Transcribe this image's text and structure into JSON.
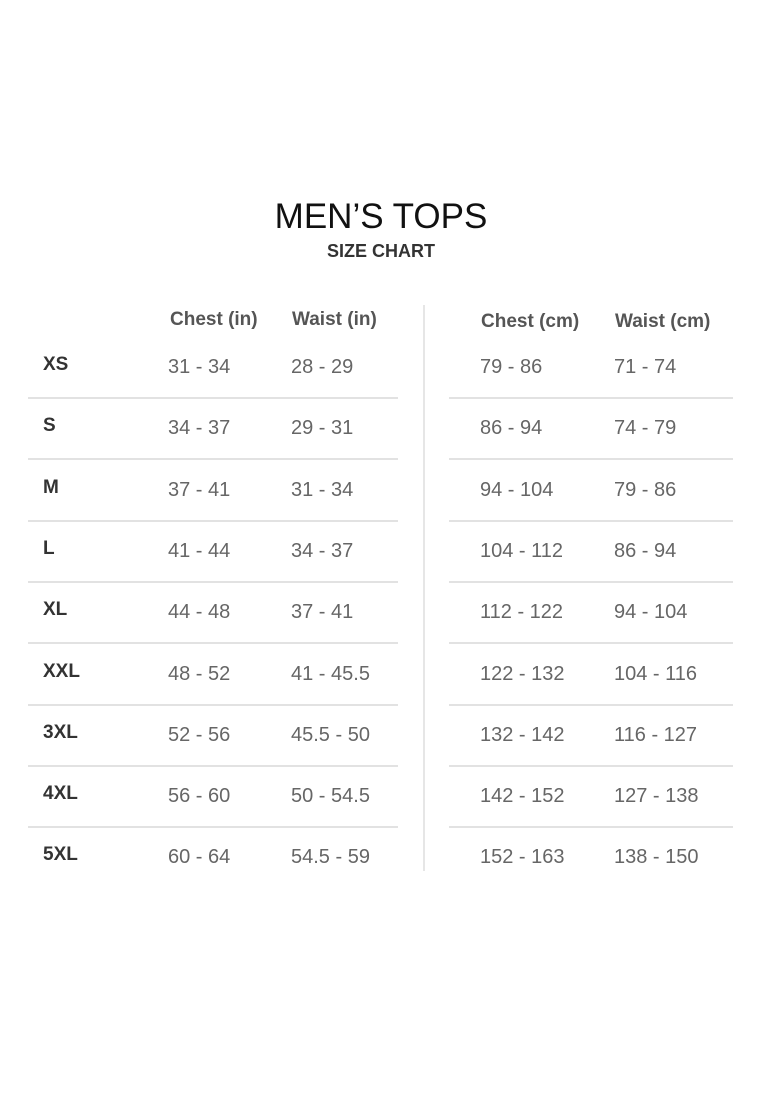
{
  "title": "MEN’S TOPS",
  "subtitle": "SIZE CHART",
  "inches_table": {
    "headers": [
      "Chest (in)",
      "Waist (in)"
    ],
    "rows": [
      {
        "size": "XS",
        "chest": "31 - 34",
        "waist": "28 - 29"
      },
      {
        "size": "S",
        "chest": "34 - 37",
        "waist": "29 - 31"
      },
      {
        "size": "M",
        "chest": "37 - 41",
        "waist": "31 - 34"
      },
      {
        "size": "L",
        "chest": "41 - 44",
        "waist": "34 - 37"
      },
      {
        "size": "XL",
        "chest": "44 - 48",
        "waist": "37 - 41"
      },
      {
        "size": "XXL",
        "chest": "48 - 52",
        "waist": "41 - 45.5"
      },
      {
        "size": "3XL",
        "chest": "52 - 56",
        "waist": "45.5 - 50"
      },
      {
        "size": "4XL",
        "chest": "56 - 60",
        "waist": "50 - 54.5"
      },
      {
        "size": "5XL",
        "chest": "60 - 64",
        "waist": "54.5 - 59"
      }
    ]
  },
  "cm_table": {
    "headers": [
      "Chest (cm)",
      "Waist (cm)"
    ],
    "rows": [
      {
        "chest": "79 - 86",
        "waist": "71 - 74"
      },
      {
        "chest": "86 - 94",
        "waist": "74 - 79"
      },
      {
        "chest": "94 - 104",
        "waist": "79 - 86"
      },
      {
        "chest": "104 - 112",
        "waist": "86 - 94"
      },
      {
        "chest": "112 - 122",
        "waist": "94 - 104"
      },
      {
        "chest": "122 - 132",
        "waist": "104 - 116"
      },
      {
        "chest": "132 - 142",
        "waist": "116 - 127"
      },
      {
        "chest": "142 - 152",
        "waist": "127 - 138"
      },
      {
        "chest": "152 - 163",
        "waist": "138 - 150"
      }
    ]
  }
}
